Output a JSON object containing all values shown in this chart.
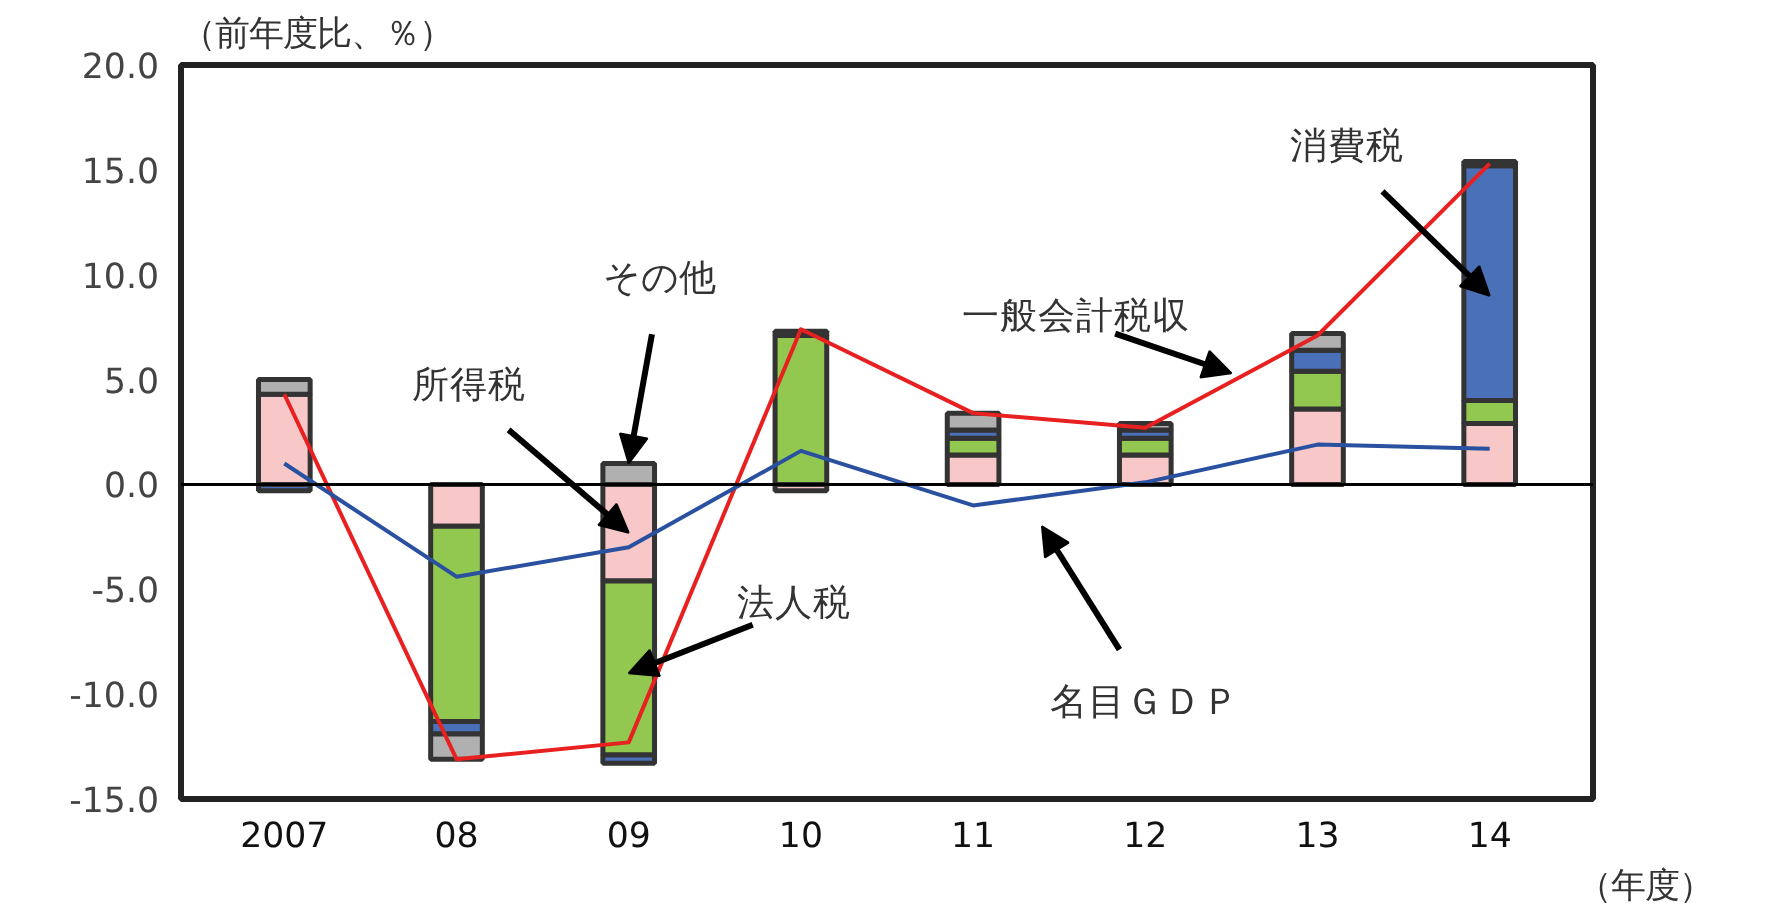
{
  "chart_data": {
    "type": "bar",
    "stacked": true,
    "ylabel": "（前年度比、％）",
    "xlabel": "（年度）",
    "categories": [
      "2007",
      "08",
      "09",
      "10",
      "11",
      "12",
      "13",
      "14"
    ],
    "ylim": [
      -15,
      20
    ],
    "yticks": [
      {
        "value": -15,
        "label": "-15.0"
      },
      {
        "value": -10,
        "label": "-10.0"
      },
      {
        "value": -5,
        "label": "-5.0"
      },
      {
        "value": 0,
        "label": "0.0"
      },
      {
        "value": 5,
        "label": "5.0"
      },
      {
        "value": 10,
        "label": "10.0"
      },
      {
        "value": 15,
        "label": "15.0"
      },
      {
        "value": 20,
        "label": "20.0"
      }
    ],
    "grid": false,
    "legend": false,
    "ref_lines": [
      {
        "axis": "y",
        "value": 0,
        "color": "#000000"
      }
    ],
    "series": [
      {
        "name": "所得税",
        "color": "#f8c8c8",
        "values": [
          4.3,
          -2.0,
          -4.6,
          -0.3,
          1.4,
          1.4,
          3.6,
          2.9
        ]
      },
      {
        "name": "法人税",
        "color": "#92c850",
        "values": [
          null,
          -9.3,
          -8.3,
          7.1,
          0.8,
          0.8,
          1.8,
          1.1
        ]
      },
      {
        "name": "消費税",
        "color": "#4a70b8",
        "values": [
          -0.3,
          -0.6,
          -0.4,
          null,
          0.4,
          0.4,
          1.0,
          11.2
        ]
      },
      {
        "name": "その他",
        "color": "#b0b0b0",
        "values": [
          0.7,
          -1.2,
          1.0,
          0.2,
          0.8,
          0.3,
          0.8,
          0.2
        ]
      },
      {
        "name": "一般会計税収",
        "type": "line",
        "color": "#e82020",
        "values": [
          4.3,
          -13.1,
          -12.3,
          7.4,
          3.4,
          2.7,
          7.1,
          15.3
        ]
      },
      {
        "name": "名目ＧＤＰ",
        "type": "line",
        "color": "#2a50a0",
        "values": [
          1.0,
          -4.4,
          -3.0,
          1.6,
          -1.0,
          0.1,
          1.9,
          1.7
        ]
      }
    ]
  }
}
